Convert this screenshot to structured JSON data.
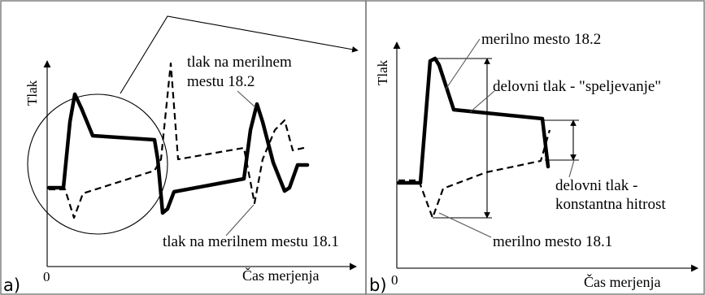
{
  "panel_a": {
    "panel_label": "a)",
    "y_axis_label": "Tlak",
    "x_axis_label": "Čas merjenja",
    "origin_label": "0",
    "label_top_line1": "tlak na merilnem",
    "label_top_line2": "mestu 18.2",
    "label_bottom": "tlak na merilnem mestu 18.1"
  },
  "panel_b": {
    "panel_label": "b)",
    "y_axis_label": "Tlak",
    "x_axis_label": "Čas merjenja",
    "origin_label": "0",
    "label_point_top": "merilno mesto 18.2",
    "label_working_pressure_1": "delovni tlak - \"speljevanje\"",
    "label_working_pressure_2_line1": "delovni tlak -",
    "label_working_pressure_2_line2": "konstantna hitrost",
    "label_point_bottom": "merilno mesto 18.1"
  }
}
